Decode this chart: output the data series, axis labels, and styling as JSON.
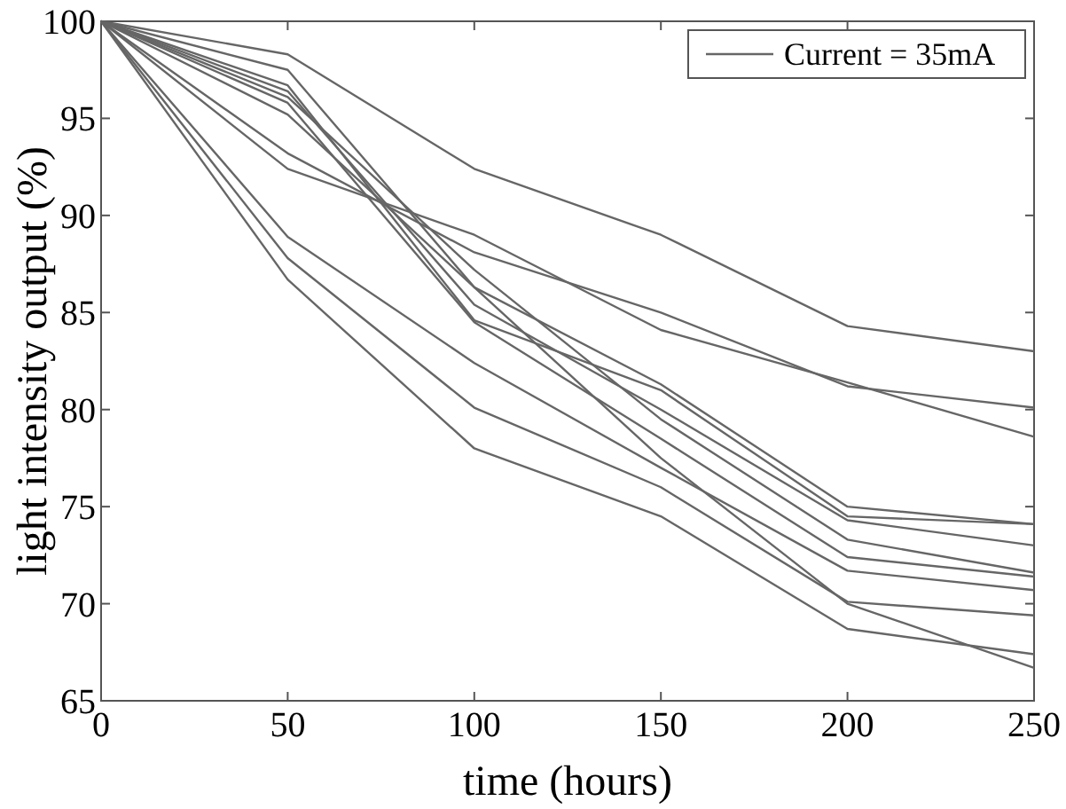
{
  "chart_data": {
    "type": "line",
    "xlabel": "time (hours)",
    "ylabel": "light intensity output (%)",
    "x": [
      0,
      50,
      100,
      150,
      200,
      250
    ],
    "xlim": [
      0,
      250
    ],
    "xticks": [
      0,
      50,
      100,
      150,
      200,
      250
    ],
    "ylim": [
      65,
      100
    ],
    "yticks": [
      65,
      70,
      75,
      80,
      85,
      90,
      95,
      100
    ],
    "grid": false,
    "legend": "top right",
    "marker": "none",
    "line_style": "solid",
    "series": [
      {
        "name": "Current = 35mA",
        "color": "#666666",
        "values": [
          100,
          98.3,
          92.4,
          89.0,
          84.3,
          83.0
        ]
      },
      {
        "color": "#666666",
        "values": [
          100,
          93.2,
          88.1,
          85.0,
          81.2,
          80.1
        ]
      },
      {
        "color": "#666666",
        "values": [
          100,
          92.4,
          89.0,
          84.1,
          81.4,
          78.6
        ]
      },
      {
        "color": "#666666",
        "values": [
          100,
          97.5,
          86.3,
          81.3,
          75.0,
          74.1
        ]
      },
      {
        "color": "#666666",
        "values": [
          100,
          96.7,
          84.6,
          81.0,
          74.5,
          74.1
        ]
      },
      {
        "color": "#666666",
        "values": [
          100,
          96.4,
          85.4,
          80.0,
          74.3,
          73.0
        ]
      },
      {
        "color": "#666666",
        "values": [
          100,
          96.1,
          87.2,
          79.5,
          73.3,
          71.6
        ]
      },
      {
        "color": "#666666",
        "values": [
          100,
          95.8,
          84.5,
          78.5,
          72.4,
          71.4
        ]
      },
      {
        "color": "#666666",
        "values": [
          100,
          95.2,
          86.3,
          77.5,
          70.0,
          66.7
        ]
      },
      {
        "color": "#666666",
        "values": [
          100,
          88.9,
          82.4,
          77.0,
          71.7,
          70.7
        ]
      },
      {
        "color": "#666666",
        "values": [
          100,
          87.8,
          80.1,
          76.0,
          70.1,
          69.4
        ]
      },
      {
        "color": "#666666",
        "values": [
          100,
          86.7,
          78.0,
          74.5,
          68.7,
          67.4
        ]
      }
    ]
  }
}
